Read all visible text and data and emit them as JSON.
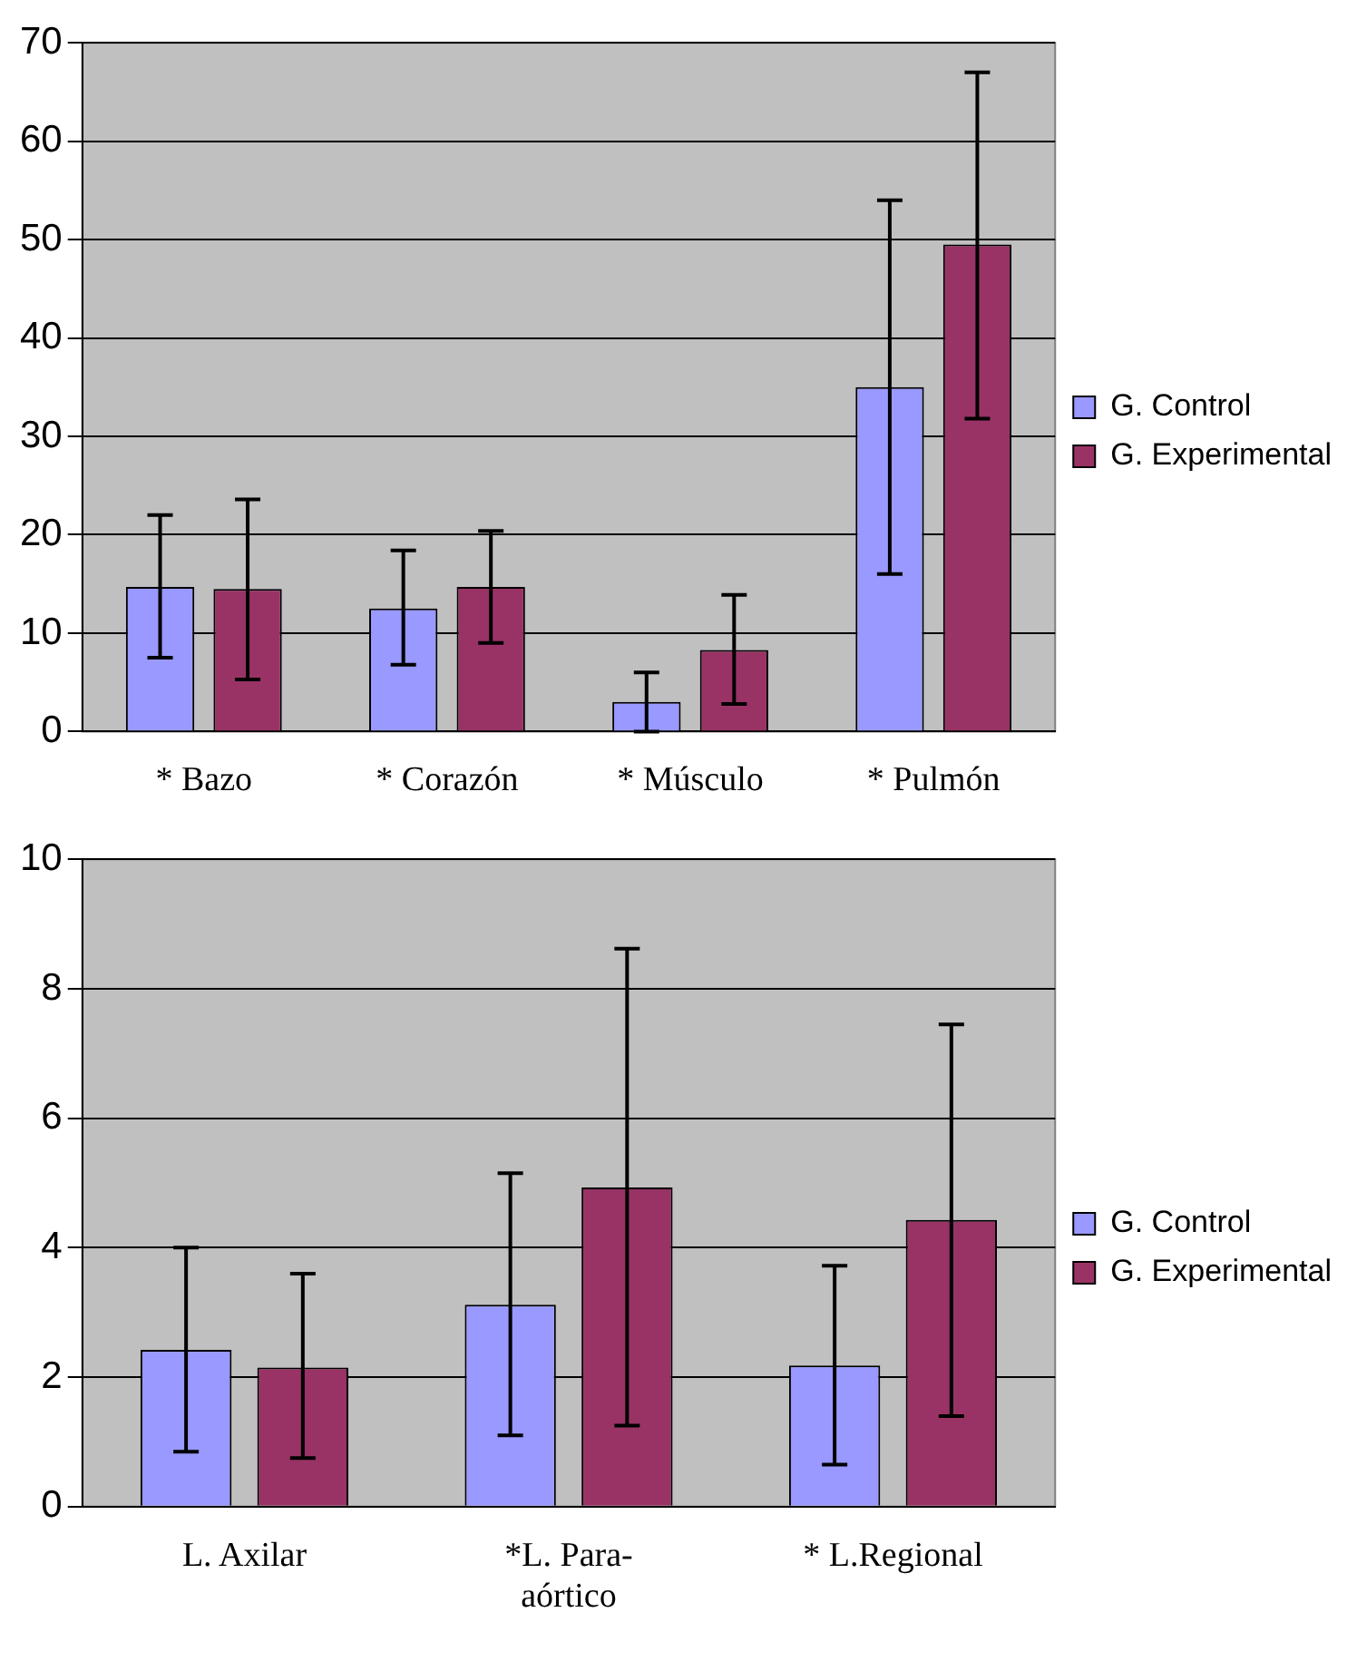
{
  "chart_data": [
    {
      "type": "bar",
      "categories": [
        "* Bazo",
        "* Corazón",
        "* Músculo",
        "* Pulmón"
      ],
      "series": [
        {
          "name": "G. Control",
          "color": "#9999ff",
          "values": [
            14.7,
            12.5,
            3,
            35
          ],
          "errors": [
            [
              7.5,
              22
            ],
            [
              6.8,
              18.4
            ],
            [
              0,
              6
            ],
            [
              16,
              54
            ]
          ]
        },
        {
          "name": "G. Experimental",
          "color": "#993366",
          "values": [
            14.5,
            14.7,
            8.3,
            49.5
          ],
          "errors": [
            [
              5.3,
              23.6
            ],
            [
              9,
              20.4
            ],
            [
              2.8,
              13.9
            ],
            [
              31.8,
              67
            ]
          ]
        }
      ],
      "ylim": [
        0,
        70
      ],
      "yticks": [
        0,
        10,
        20,
        30,
        40,
        50,
        60,
        70
      ],
      "grid": "y",
      "legend": "right"
    },
    {
      "type": "bar",
      "categories": [
        "L. Axilar",
        "*L. Para-aórtico",
        "* L.Regional"
      ],
      "series": [
        {
          "name": "G. Control",
          "color": "#9999ff",
          "values": [
            2.42,
            3.12,
            2.18
          ],
          "errors": [
            [
              0.85,
              4.0
            ],
            [
              1.1,
              5.15
            ],
            [
              0.65,
              3.72
            ]
          ]
        },
        {
          "name": "G. Experimental",
          "color": "#993366",
          "values": [
            2.15,
            4.93,
            4.43
          ],
          "errors": [
            [
              0.75,
              3.6
            ],
            [
              1.25,
              8.62
            ],
            [
              1.4,
              7.45
            ]
          ]
        }
      ],
      "ylim": [
        0,
        10
      ],
      "yticks": [
        0,
        2,
        4,
        6,
        8,
        10
      ],
      "grid": "y",
      "legend": "right"
    }
  ]
}
